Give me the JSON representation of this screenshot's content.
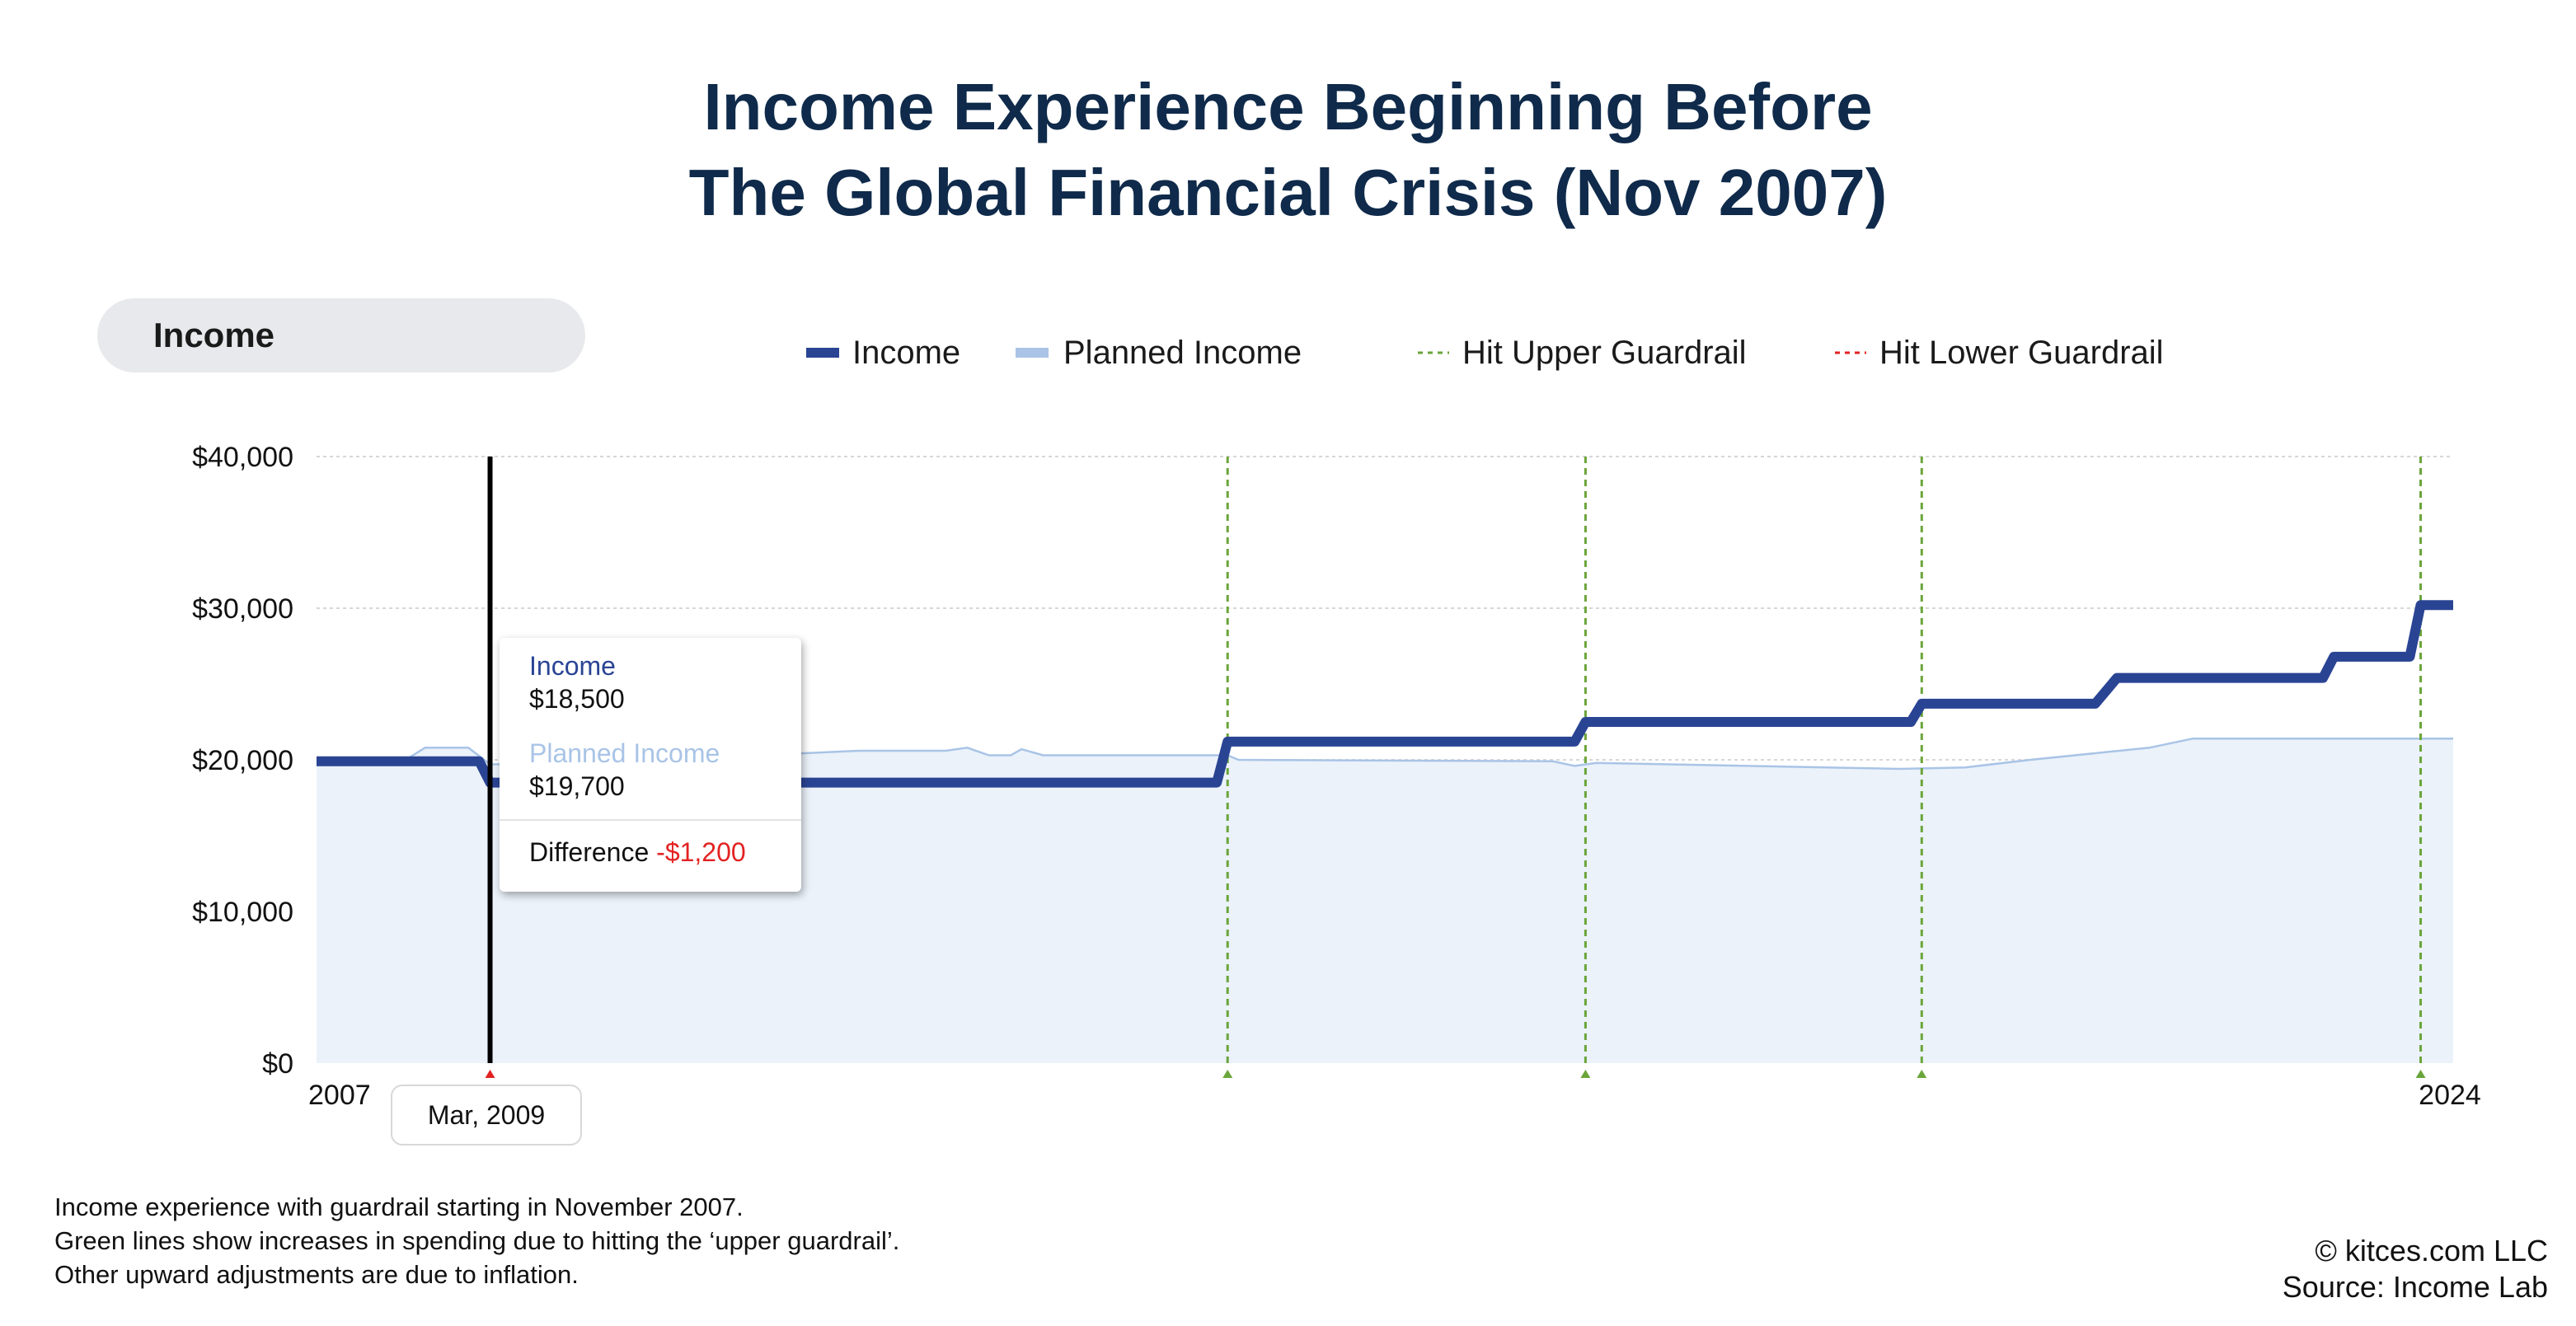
{
  "title_lines": [
    "Income Experience Beginning Before",
    "The Global Financial Crisis (Nov 2007)"
  ],
  "tab": {
    "label": "Income"
  },
  "colors": {
    "income": "#2a4494",
    "planned_line": "#a9c4e6",
    "planned_fill": "#ebf2fa",
    "upper_guardrail": "#6aa53a",
    "lower_guardrail": "#e32222",
    "title": "#0f2a4a",
    "cursor": "#000000"
  },
  "chart_data": {
    "type": "line",
    "title": "",
    "xlabel": "",
    "ylabel": "",
    "x_range": [
      "2007-11",
      "2024-04"
    ],
    "x_tick_labels": [
      "2007",
      "2024"
    ],
    "y_range": [
      0,
      40000
    ],
    "y_ticks": [
      0,
      10000,
      20000,
      30000,
      40000
    ],
    "y_tick_labels": [
      "$0",
      "$10,000",
      "$20,000",
      "$30,000",
      "$40,000"
    ],
    "grid": true,
    "legend_position": "top",
    "legend": [
      "Income",
      "Planned Income",
      "Hit Upper Guardrail",
      "Hit Lower Guardrail"
    ],
    "series": [
      {
        "name": "Income",
        "style": "step",
        "points": [
          [
            "2007-11",
            19900
          ],
          [
            "2009-02",
            19900
          ],
          [
            "2009-03",
            18500
          ],
          [
            "2014-10",
            18500
          ],
          [
            "2014-11",
            21200
          ],
          [
            "2017-07",
            21200
          ],
          [
            "2017-08",
            22500
          ],
          [
            "2020-02",
            22500
          ],
          [
            "2020-03",
            23700
          ],
          [
            "2021-07",
            23700
          ],
          [
            "2021-09",
            25400
          ],
          [
            "2023-04",
            25400
          ],
          [
            "2023-05",
            26800
          ],
          [
            "2023-12",
            26800
          ],
          [
            "2024-01",
            30200
          ],
          [
            "2024-04",
            30200
          ]
        ]
      },
      {
        "name": "Planned Income",
        "style": "area",
        "points": [
          [
            "2007-11",
            19900
          ],
          [
            "2008-07",
            19900
          ],
          [
            "2008-09",
            20800
          ],
          [
            "2009-01",
            20800
          ],
          [
            "2009-03",
            19700
          ],
          [
            "2009-12",
            19800
          ],
          [
            "2012-01",
            20600
          ],
          [
            "2012-09",
            20600
          ],
          [
            "2012-11",
            20800
          ],
          [
            "2013-01",
            20300
          ],
          [
            "2013-03",
            20300
          ],
          [
            "2013-04",
            20700
          ],
          [
            "2013-06",
            20300
          ],
          [
            "2014-11",
            20300
          ],
          [
            "2014-12",
            20000
          ],
          [
            "2017-05",
            19900
          ],
          [
            "2017-07",
            19600
          ],
          [
            "2017-09",
            19800
          ],
          [
            "2020-01",
            19400
          ],
          [
            "2020-07",
            19500
          ],
          [
            "2021-01",
            20000
          ],
          [
            "2021-12",
            20800
          ],
          [
            "2022-04",
            21400
          ],
          [
            "2024-04",
            21400
          ]
        ]
      }
    ],
    "upper_guardrail_hits": [
      "2014-11",
      "2017-08",
      "2020-03",
      "2024-01"
    ],
    "lower_guardrail_hits": [
      "2009-03"
    ],
    "tooltip": {
      "date_label": "Mar, 2009",
      "income_label": "Income",
      "income_value": "$18,500",
      "planned_label": "Planned Income",
      "planned_value": "$19,700",
      "difference_label": "Difference",
      "difference_value": "-$1,200"
    }
  },
  "footnote": [
    "Income experience with guardrail starting in November 2007.",
    "Green lines show increases in spending due to hitting the ‘upper guardrail’.",
    "Other upward adjustments are due to inflation."
  ],
  "credits": [
    "© kitces.com LLC",
    "Source: Income Lab"
  ]
}
